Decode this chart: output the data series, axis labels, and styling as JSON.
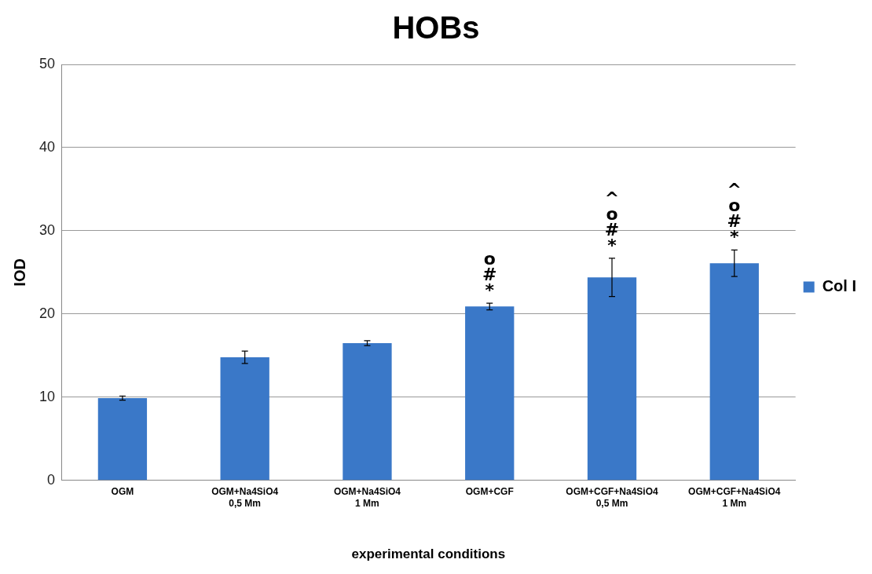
{
  "chart_data": {
    "type": "bar",
    "title": "HOBs",
    "xlabel": "experimental conditions",
    "ylabel": "IOD",
    "categories": [
      "OGM",
      "OGM+Na4SiO4 0,5 Mm",
      "OGM+Na4SiO4 1 Mm",
      "OGM+CGF",
      "OGM+CGF+Na4SiO4 0,5 Mm",
      "OGM+CGF+Na4SiO4 1 Mm"
    ],
    "series": [
      {
        "name": "Col I",
        "color": "#3a78c8",
        "values": [
          9.9,
          14.8,
          16.5,
          20.9,
          24.4,
          26.1
        ],
        "errors": [
          0.25,
          0.75,
          0.3,
          0.4,
          2.3,
          1.6
        ]
      }
    ],
    "ylim": [
      0,
      50
    ],
    "yticks": [
      0,
      10,
      20,
      30,
      40,
      50
    ],
    "grid": "y",
    "legend": "right",
    "annotations": [
      {
        "text": "*#o",
        "x": "OGM+CGF",
        "y": 21.3
      },
      {
        "text": "*#o^",
        "x": "OGM+CGF+Na4SiO4 0,5 Mm",
        "y": 26.7
      },
      {
        "text": "*#o^",
        "x": "OGM+CGF+Na4SiO4 1 Mm",
        "y": 27.7
      }
    ]
  }
}
